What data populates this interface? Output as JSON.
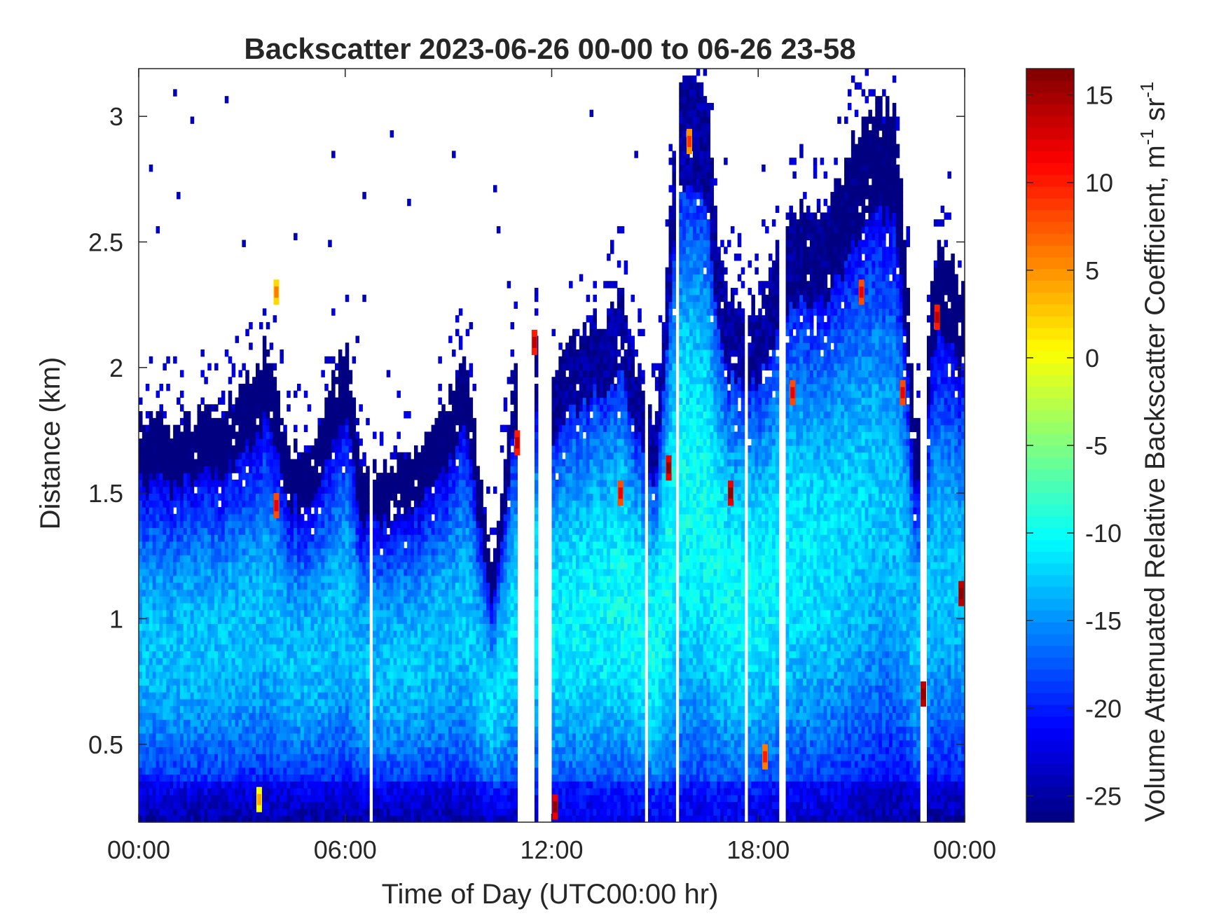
{
  "chart_data": {
    "type": "heatmap",
    "title": "Backscatter 2023-06-26 00-00 to 06-26 23-58",
    "xlabel": "Time of Day (UTC00:00 hr)",
    "ylabel": "Distance (km)",
    "colorbar_label_main": "Volume Attenuated Relative Backscatter Coefficient, m",
    "colorbar_sup1": "-1",
    "colorbar_mid": " sr",
    "colorbar_sup2": "-1",
    "x_range_hours": [
      0,
      24
    ],
    "ylim": [
      0.19,
      3.19
    ],
    "x_ticks": [
      {
        "hour": 0,
        "label": "00:00"
      },
      {
        "hour": 6,
        "label": "06:00"
      },
      {
        "hour": 12,
        "label": "12:00"
      },
      {
        "hour": 18,
        "label": "18:00"
      },
      {
        "hour": 24,
        "label": "00:00"
      }
    ],
    "y_ticks": [
      {
        "value": 0.5,
        "label": "0.5"
      },
      {
        "value": 1,
        "label": "1"
      },
      {
        "value": 1.5,
        "label": "1.5"
      },
      {
        "value": 2,
        "label": "2"
      },
      {
        "value": 2.5,
        "label": "2.5"
      },
      {
        "value": 3,
        "label": "3"
      }
    ],
    "colorbar_range": [
      -26.5,
      16.5
    ],
    "colorbar_ticks": [
      {
        "value": -25,
        "label": "-25"
      },
      {
        "value": -20,
        "label": "-20"
      },
      {
        "value": -15,
        "label": "-15"
      },
      {
        "value": -10,
        "label": "-10"
      },
      {
        "value": -5,
        "label": "-5"
      },
      {
        "value": 0,
        "label": "0"
      },
      {
        "value": 5,
        "label": "5"
      },
      {
        "value": 10,
        "label": "10"
      },
      {
        "value": 15,
        "label": "15"
      }
    ],
    "colormap": "jet",
    "signal_top_km_by_hour": [
      [
        0.0,
        1.8
      ],
      [
        1.0,
        1.75
      ],
      [
        2.0,
        1.8
      ],
      [
        3.0,
        1.9
      ],
      [
        3.8,
        2.1
      ],
      [
        4.3,
        1.65
      ],
      [
        5.0,
        1.7
      ],
      [
        6.0,
        2.1
      ],
      [
        6.5,
        1.6
      ],
      [
        7.2,
        1.6
      ],
      [
        8.5,
        1.75
      ],
      [
        9.5,
        2.0
      ],
      [
        10.3,
        1.2
      ],
      [
        10.8,
        1.9
      ],
      [
        11.4,
        2.2
      ],
      [
        12.0,
        2.0
      ],
      [
        13.0,
        2.15
      ],
      [
        14.0,
        2.3
      ],
      [
        15.0,
        1.7
      ],
      [
        15.7,
        3.19
      ],
      [
        16.5,
        3.1
      ],
      [
        17.0,
        2.3
      ],
      [
        18.0,
        2.25
      ],
      [
        19.0,
        2.6
      ],
      [
        20.0,
        2.6
      ],
      [
        21.0,
        3.0
      ],
      [
        22.0,
        3.05
      ],
      [
        22.6,
        1.7
      ],
      [
        23.2,
        2.5
      ],
      [
        24.0,
        2.3
      ]
    ],
    "gaps_hours": [
      [
        6.7,
        6.8
      ],
      [
        11.0,
        11.5
      ],
      [
        11.65,
        12.0
      ],
      [
        14.7,
        14.75
      ],
      [
        15.6,
        15.7
      ],
      [
        17.6,
        17.7
      ],
      [
        18.6,
        18.75
      ],
      [
        22.75,
        22.95
      ]
    ],
    "hotspots": [
      {
        "hour": 3.5,
        "km": 0.28,
        "value": 0
      },
      {
        "hour": 4.0,
        "km": 1.45,
        "value": 8
      },
      {
        "hour": 4.0,
        "km": 2.3,
        "value": 2
      },
      {
        "hour": 11.0,
        "km": 1.7,
        "value": 10
      },
      {
        "hour": 11.5,
        "km": 2.1,
        "value": 10
      },
      {
        "hour": 12.1,
        "km": 0.25,
        "value": 12
      },
      {
        "hour": 14.0,
        "km": 1.5,
        "value": 8
      },
      {
        "hour": 15.4,
        "km": 1.6,
        "value": 12
      },
      {
        "hour": 16.0,
        "km": 2.9,
        "value": 5
      },
      {
        "hour": 17.2,
        "km": 1.5,
        "value": 12
      },
      {
        "hour": 18.2,
        "km": 0.45,
        "value": 6
      },
      {
        "hour": 19.0,
        "km": 1.9,
        "value": 8
      },
      {
        "hour": 21.0,
        "km": 2.3,
        "value": 8
      },
      {
        "hour": 22.2,
        "km": 1.9,
        "value": 8
      },
      {
        "hour": 22.8,
        "km": 0.7,
        "value": 14
      },
      {
        "hour": 23.2,
        "km": 2.2,
        "value": 10
      },
      {
        "hour": 23.9,
        "km": 1.1,
        "value": 14
      }
    ]
  }
}
